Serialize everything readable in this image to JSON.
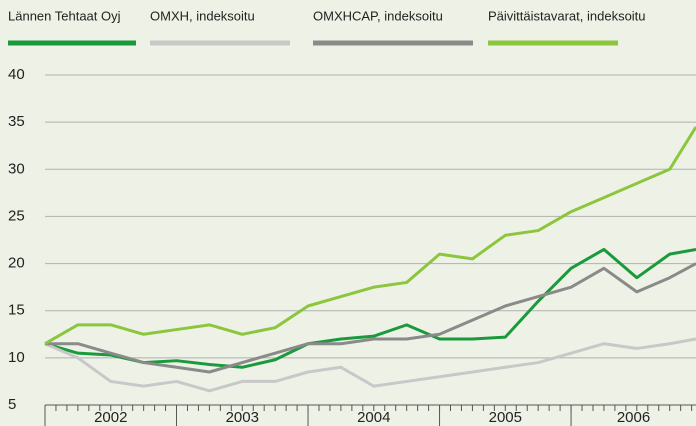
{
  "chart_data": {
    "type": "line",
    "categories": [
      "2002",
      "2003",
      "2004",
      "2005",
      "2006"
    ],
    "x": [
      2002,
      2002.25,
      2002.5,
      2002.75,
      2003,
      2003.25,
      2003.5,
      2003.75,
      2004,
      2004.25,
      2004.5,
      2004.75,
      2005,
      2005.25,
      2005.5,
      2005.75,
      2006,
      2006.25,
      2006.5,
      2006.75,
      2006.95
    ],
    "series": [
      {
        "name": "Lännen Tehtaat Oyj",
        "color": "#1a9a3c",
        "values": [
          11.5,
          10.5,
          10.3,
          9.5,
          9.7,
          9.3,
          9,
          9.8,
          11.5,
          12,
          12.3,
          13.5,
          12,
          12,
          12.2,
          16,
          19.5,
          21.5,
          18.5,
          21,
          21.5
        ]
      },
      {
        "name": "OMXH, indeksoitu",
        "color": "#c8c8c8",
        "values": [
          11.5,
          10,
          7.5,
          7,
          7.5,
          6.5,
          7.5,
          7.5,
          8.5,
          9,
          7,
          7.5,
          8,
          8.5,
          9,
          9.5,
          10.5,
          11.5,
          11,
          11.5,
          12
        ]
      },
      {
        "name": "OMXHCAP, indeksoitu",
        "color": "#8a8a8a",
        "values": [
          11.5,
          11.5,
          10.5,
          9.5,
          9,
          8.5,
          9.5,
          10.5,
          11.5,
          11.5,
          12,
          12,
          12.5,
          14,
          15.5,
          16.5,
          17.5,
          19.5,
          17,
          18.5,
          20
        ]
      },
      {
        "name": "Päivittäistavarat, indeksoitu",
        "color": "#8cc63f",
        "values": [
          11.5,
          13.5,
          13.5,
          12.5,
          13,
          13.5,
          12.5,
          13.2,
          15.5,
          16.5,
          17.5,
          18,
          21,
          20.5,
          23,
          23.5,
          25.5,
          27,
          28.5,
          30,
          34.5
        ]
      }
    ],
    "xlim": [
      2002,
      2006.95
    ],
    "xticks": [
      2002,
      2003,
      2004,
      2005,
      2006
    ],
    "ylim": [
      5,
      40
    ],
    "yticks": [
      5,
      10,
      15,
      20,
      25,
      30,
      35,
      40
    ],
    "grid": true
  }
}
